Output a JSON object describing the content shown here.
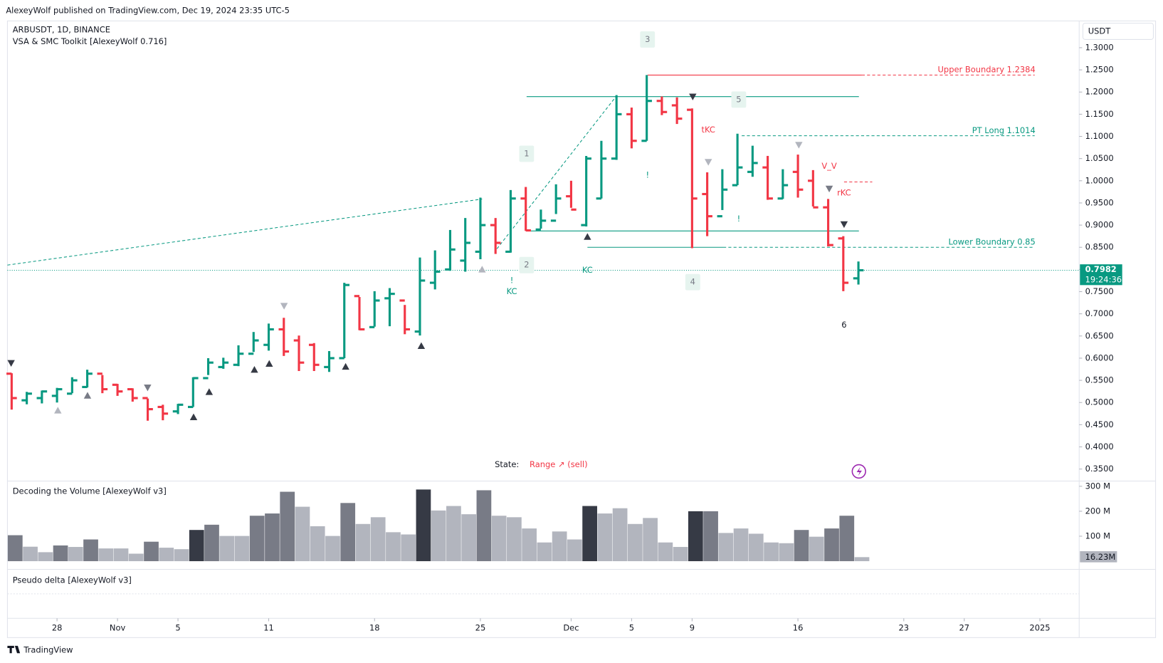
{
  "header": {
    "published": "AlexeyWolf published on TradingView.com, Dec 19, 2024 23:35 UTC-5",
    "symbol": "ARBUSDT, 1D, BINANCE",
    "indicator": "VSA & SMC Toolkit [AlexeyWolf 0.716]",
    "currency": "USDT",
    "brand": "TradingView"
  },
  "chart_data": {
    "type": "ohlc",
    "ohlc": {
      "up_color": "#089981",
      "down_color": "#f23645",
      "open": [
        0.565,
        0.505,
        0.51,
        0.515,
        0.52,
        0.535,
        0.565,
        0.54,
        0.53,
        0.51,
        0.49,
        0.48,
        0.49,
        0.555,
        0.58,
        0.585,
        0.61,
        0.63,
        0.665,
        0.64,
        0.63,
        0.58,
        0.6,
        0.74,
        0.67,
        0.735,
        0.73,
        0.66,
        0.77,
        0.8,
        0.82,
        0.84,
        0.9,
        0.84,
        0.96,
        0.89,
        0.91,
        0.965,
        0.9,
        0.96,
        1.05,
        1.15,
        1.09,
        1.18,
        1.17,
        1.16,
        0.97,
        0.92,
        0.99,
        1.02,
        1.03,
        0.96,
        1.02,
        1.0,
        0.94,
        0.87,
        0.78
      ],
      "high": [
        0.566,
        0.524,
        0.527,
        0.533,
        0.557,
        0.574,
        0.562,
        0.542,
        0.532,
        0.509,
        0.495,
        0.497,
        0.557,
        0.6,
        0.601,
        0.629,
        0.659,
        0.678,
        0.691,
        0.651,
        0.634,
        0.616,
        0.77,
        0.738,
        0.751,
        0.758,
        0.72,
        0.827,
        0.843,
        0.889,
        0.916,
        0.962,
        0.916,
        0.979,
        0.986,
        0.935,
        0.992,
        1.0,
        1.056,
        1.09,
        1.193,
        1.165,
        1.2384,
        1.19,
        1.188,
        1.163,
        1.019,
        1.026,
        1.106,
        1.079,
        1.056,
        1.026,
        1.059,
        1.024,
        0.959,
        0.875,
        0.818
      ],
      "low": [
        0.484,
        0.496,
        0.498,
        0.5,
        0.521,
        0.534,
        0.521,
        0.515,
        0.502,
        0.459,
        0.46,
        0.474,
        0.49,
        0.562,
        0.576,
        0.582,
        0.614,
        0.617,
        0.605,
        0.571,
        0.571,
        0.569,
        0.6,
        0.663,
        0.671,
        0.672,
        0.654,
        0.651,
        0.755,
        0.797,
        0.795,
        0.823,
        0.835,
        0.838,
        0.887,
        0.892,
        0.925,
        0.939,
        0.897,
        0.96,
        1.047,
        1.073,
        1.09,
        1.148,
        1.128,
        0.848,
        0.875,
        0.934,
        0.99,
        1.009,
        0.957,
        0.959,
        0.962,
        0.942,
        0.852,
        0.751,
        0.766
      ],
      "close": [
        0.51,
        0.52,
        0.525,
        0.53,
        0.55,
        0.565,
        0.53,
        0.525,
        0.51,
        0.485,
        0.475,
        0.495,
        0.555,
        0.59,
        0.59,
        0.61,
        0.64,
        0.665,
        0.615,
        0.59,
        0.585,
        0.6,
        0.765,
        0.665,
        0.73,
        0.745,
        0.665,
        0.775,
        0.795,
        0.845,
        0.86,
        0.9,
        0.86,
        0.96,
        0.888,
        0.91,
        0.96,
        0.935,
        1.05,
        1.05,
        1.15,
        1.09,
        1.18,
        1.155,
        1.14,
        0.96,
        0.92,
        0.98,
        1.03,
        1.04,
        0.96,
        0.99,
        0.98,
        0.94,
        0.855,
        0.77,
        0.7982
      ]
    },
    "xlim": [
      -0.28,
      70.6
    ],
    "xticks": [
      {
        "value": 3,
        "label": "28"
      },
      {
        "value": 7,
        "label": "Nov"
      },
      {
        "value": 11,
        "label": "5"
      },
      {
        "value": 17,
        "label": "11"
      },
      {
        "value": 24,
        "label": "18"
      },
      {
        "value": 31,
        "label": "25"
      },
      {
        "value": 37,
        "label": "Dec"
      },
      {
        "value": 41,
        "label": "5"
      },
      {
        "value": 45,
        "label": "9"
      },
      {
        "value": 52,
        "label": "16"
      },
      {
        "value": 59,
        "label": "23"
      },
      {
        "value": 63,
        "label": "27"
      },
      {
        "value": 68,
        "label": "2025"
      }
    ],
    "ylim": [
      0.328,
      1.357
    ],
    "yticks": [
      {
        "value": 0.35,
        "label": "0.3500"
      },
      {
        "value": 0.4,
        "label": "0.4000"
      },
      {
        "value": 0.45,
        "label": "0.4500"
      },
      {
        "value": 0.5,
        "label": "0.5000"
      },
      {
        "value": 0.55,
        "label": "0.5500"
      },
      {
        "value": 0.6,
        "label": "0.6000"
      },
      {
        "value": 0.65,
        "label": "0.6500"
      },
      {
        "value": 0.7,
        "label": "0.7000"
      },
      {
        "value": 0.75,
        "label": "0.7500"
      },
      {
        "value": 0.8,
        "label": "0.8000"
      },
      {
        "value": 0.85,
        "label": "0.8500"
      },
      {
        "value": 0.9,
        "label": "0.9000"
      },
      {
        "value": 0.95,
        "label": "0.9500"
      },
      {
        "value": 1.0,
        "label": "1.0000"
      },
      {
        "value": 1.05,
        "label": "1.0500"
      },
      {
        "value": 1.1,
        "label": "1.1000"
      },
      {
        "value": 1.15,
        "label": "1.1500"
      },
      {
        "value": 1.2,
        "label": "1.2000"
      },
      {
        "value": 1.25,
        "label": "1.2500"
      },
      {
        "value": 1.3,
        "label": "1.3000"
      }
    ],
    "last_price": 0.7982,
    "countdown": "19:24:36",
    "levels": [
      {
        "text": "Upper Boundary 1.2384",
        "value": 1.2384,
        "color": "#f23645"
      },
      {
        "text": "PT Long 1.1014",
        "value": 1.1014,
        "color": "#089981"
      },
      {
        "text": "Lower Boundary 0.85",
        "value": 0.85,
        "color": "#089981"
      }
    ],
    "annotations": [
      "1",
      "2",
      "3",
      "4",
      "5",
      "6",
      "KC",
      "KC",
      "tKC",
      "rKC",
      "V_V",
      "!",
      "!",
      "!"
    ],
    "state": {
      "label": "State:",
      "value": "Range ↗ (sell)"
    },
    "volume": {
      "title": "Decoding the Volume [AlexeyWolf v3]",
      "values": [
        104,
        58,
        36,
        63,
        57,
        87,
        51,
        51,
        30,
        78,
        54,
        48,
        125,
        146,
        101,
        101,
        182,
        191,
        278,
        218,
        140,
        101,
        233,
        149,
        176,
        116,
        107,
        287,
        203,
        221,
        188,
        284,
        182,
        176,
        131,
        75,
        119,
        87,
        221,
        191,
        212,
        149,
        173,
        75,
        57,
        200,
        200,
        113,
        131,
        110,
        75,
        72,
        125,
        98,
        131,
        182,
        16.23
      ],
      "value_labels_last": "16.23M",
      "colors": [
        "#787b86",
        "#b2b5be",
        "#b2b5be",
        "#787b86",
        "#b2b5be",
        "#787b86",
        "#b2b5be",
        "#b2b5be",
        "#b2b5be",
        "#787b86",
        "#b2b5be",
        "#b2b5be",
        "#363a45",
        "#787b86",
        "#b2b5be",
        "#b2b5be",
        "#787b86",
        "#787b86",
        "#787b86",
        "#b2b5be",
        "#b2b5be",
        "#b2b5be",
        "#787b86",
        "#b2b5be",
        "#b2b5be",
        "#b2b5be",
        "#b2b5be",
        "#363a45",
        "#b2b5be",
        "#b2b5be",
        "#b2b5be",
        "#787b86",
        "#b2b5be",
        "#b2b5be",
        "#b2b5be",
        "#b2b5be",
        "#b2b5be",
        "#b2b5be",
        "#363a45",
        "#b2b5be",
        "#b2b5be",
        "#b2b5be",
        "#b2b5be",
        "#b2b5be",
        "#b2b5be",
        "#363a45",
        "#787b86",
        "#b2b5be",
        "#b2b5be",
        "#b2b5be",
        "#b2b5be",
        "#b2b5be",
        "#787b86",
        "#b2b5be",
        "#787b86",
        "#787b86",
        "#b2b5be"
      ],
      "ylim": [
        0,
        315
      ],
      "yticks": [
        {
          "value": 100,
          "label": "100 M"
        },
        {
          "value": 200,
          "label": "200 M"
        },
        {
          "value": 300,
          "label": "300 M"
        }
      ]
    },
    "delta": {
      "title": "Pseudo delta [AlexeyWolf v3]"
    }
  }
}
